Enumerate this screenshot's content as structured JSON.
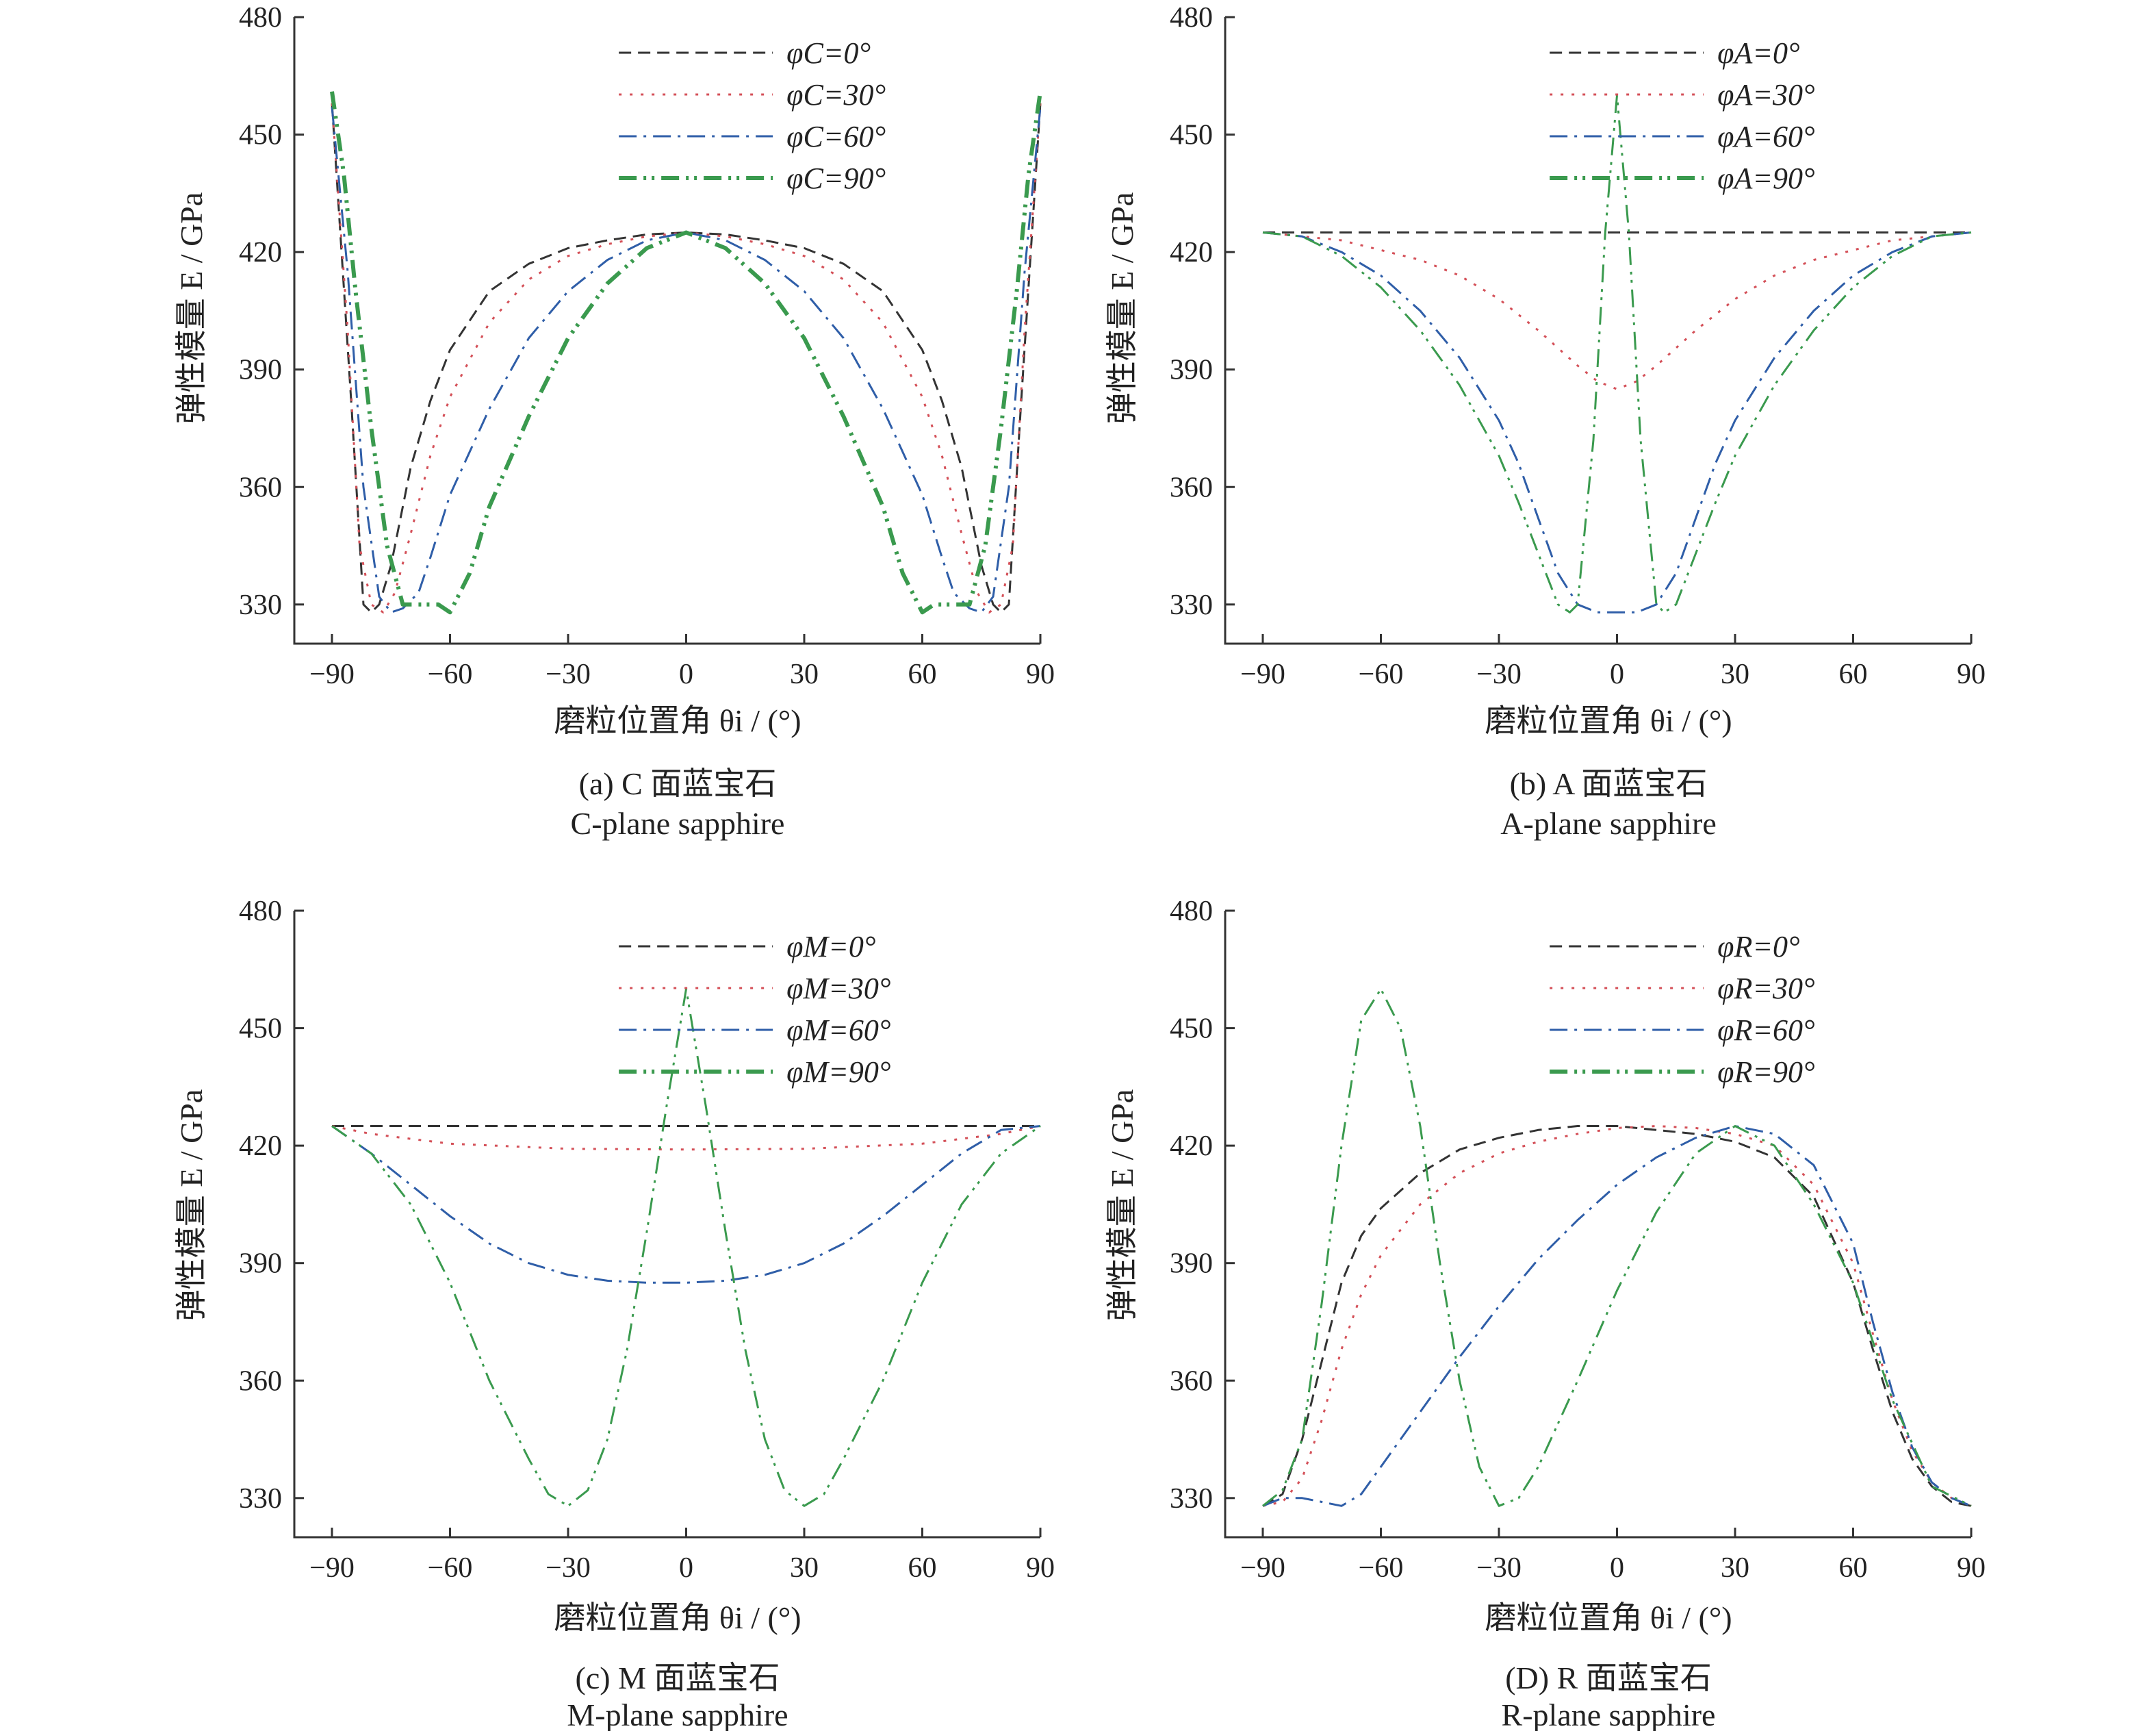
{
  "figure": {
    "panels": [
      {
        "id": "a",
        "caption_cn": "(a) C 面蓝宝石",
        "caption_en": "C-plane sapphire",
        "xlabel": "磨粒位置角 θi / (°)",
        "ylabel": "弹性模量 E / GPa"
      },
      {
        "id": "b",
        "caption_cn": "(b) A 面蓝宝石",
        "caption_en": "A-plane sapphire",
        "xlabel": "磨粒位置角 θi / (°)",
        "ylabel": "弹性模量 E / GPa"
      },
      {
        "id": "c",
        "caption_cn": "(c) M 面蓝宝石",
        "caption_en": "M-plane sapphire",
        "xlabel": "磨粒位置角 θi / (°)",
        "ylabel": "弹性模量 E / GPa"
      },
      {
        "id": "d",
        "caption_cn": "(D) R 面蓝宝石",
        "caption_en": "R-plane sapphire",
        "xlabel": "磨粒位置角 θi / (°)",
        "ylabel": "弹性模量 E / GPa"
      }
    ]
  },
  "styles": {
    "colors": [
      "#333333",
      "#d45058",
      "#2f5ea8",
      "#3a9a4e"
    ]
  },
  "chart_data": [
    {
      "type": "line",
      "xlim": [
        -90,
        90
      ],
      "ylim": [
        320,
        480
      ],
      "xticks": [
        -90,
        -60,
        -30,
        0,
        30,
        60,
        90
      ],
      "yticks": [
        330,
        360,
        390,
        420,
        450,
        480
      ],
      "legend": "top-right",
      "series": [
        {
          "name": "φC=0°",
          "x": [
            -90,
            -85,
            -82,
            -80,
            -78,
            -75,
            -70,
            -65,
            -60,
            -50,
            -40,
            -30,
            -20,
            -10,
            0,
            10,
            20,
            30,
            40,
            50,
            60,
            65,
            70,
            75,
            78,
            80,
            82,
            85,
            90
          ],
          "y": [
            458,
            380,
            330,
            328,
            330,
            340,
            365,
            382,
            395,
            410,
            417,
            421,
            423,
            424.5,
            425,
            424.5,
            423,
            421,
            417,
            410,
            395,
            382,
            365,
            340,
            330,
            328,
            330,
            380,
            458
          ]
        },
        {
          "name": "φC=30°",
          "x": [
            -90,
            -86,
            -83,
            -80,
            -77,
            -74,
            -70,
            -65,
            -60,
            -50,
            -40,
            -30,
            -20,
            -10,
            0,
            10,
            20,
            30,
            40,
            50,
            60,
            65,
            70,
            74,
            77,
            80,
            83,
            86,
            90
          ],
          "y": [
            458,
            400,
            345,
            330,
            328,
            333,
            348,
            368,
            383,
            402,
            413,
            419,
            422,
            424,
            425,
            424,
            422,
            419,
            413,
            402,
            383,
            368,
            348,
            333,
            328,
            330,
            345,
            400,
            458
          ]
        },
        {
          "name": "φC=60°",
          "x": [
            -90,
            -86,
            -82,
            -78,
            -75,
            -72,
            -68,
            -65,
            -60,
            -50,
            -40,
            -30,
            -20,
            -10,
            0,
            10,
            20,
            30,
            40,
            50,
            60,
            65,
            68,
            72,
            75,
            78,
            82,
            86,
            90
          ],
          "y": [
            457,
            415,
            360,
            332,
            328,
            329,
            333,
            342,
            358,
            380,
            398,
            410,
            418,
            423,
            425,
            423,
            418,
            410,
            398,
            380,
            358,
            342,
            333,
            329,
            328,
            332,
            360,
            415,
            457
          ]
        },
        {
          "name": "φC=90°",
          "x": [
            -90,
            -87,
            -84,
            -80,
            -76,
            -72,
            -68,
            -63,
            -60,
            -55,
            -50,
            -40,
            -30,
            -20,
            -10,
            0,
            10,
            20,
            30,
            40,
            50,
            55,
            60,
            63,
            68,
            72,
            76,
            80,
            84,
            87,
            90
          ],
          "y": [
            461,
            440,
            410,
            375,
            345,
            330,
            330,
            330,
            328,
            338,
            355,
            378,
            398,
            412,
            421,
            425,
            421,
            412,
            398,
            378,
            355,
            338,
            328,
            330,
            330,
            330,
            345,
            375,
            410,
            440,
            461
          ]
        }
      ]
    },
    {
      "type": "line",
      "xlim": [
        -90,
        90
      ],
      "ylim": [
        320,
        480
      ],
      "xticks": [
        -90,
        -60,
        -30,
        0,
        30,
        60,
        90
      ],
      "yticks": [
        330,
        360,
        390,
        420,
        450,
        480
      ],
      "legend": "top-right",
      "series": [
        {
          "name": "φA=0°",
          "x": [
            -90,
            90
          ],
          "y": [
            425,
            425
          ]
        },
        {
          "name": "φA=30°",
          "x": [
            -90,
            -70,
            -50,
            -40,
            -30,
            -20,
            -10,
            -5,
            0,
            5,
            10,
            20,
            30,
            40,
            50,
            70,
            90
          ],
          "y": [
            425,
            423,
            418,
            414,
            408,
            400,
            391,
            387,
            385,
            387,
            391,
            400,
            408,
            414,
            418,
            423,
            425
          ]
        },
        {
          "name": "φA=60°",
          "x": [
            -90,
            -80,
            -70,
            -60,
            -50,
            -40,
            -30,
            -25,
            -20,
            -15,
            -10,
            -5,
            0,
            5,
            10,
            15,
            20,
            25,
            30,
            40,
            50,
            60,
            70,
            80,
            90
          ],
          "y": [
            425,
            424,
            420,
            414,
            405,
            393,
            377,
            366,
            352,
            338,
            330,
            328,
            328,
            328,
            330,
            338,
            352,
            366,
            377,
            393,
            405,
            414,
            420,
            424,
            425
          ]
        },
        {
          "name": "φA=90°",
          "x": [
            -90,
            -80,
            -70,
            -60,
            -50,
            -40,
            -30,
            -25,
            -20,
            -15,
            -12,
            -10,
            -6,
            -3,
            0,
            3,
            6,
            10,
            12,
            15,
            20,
            25,
            30,
            40,
            50,
            60,
            70,
            80,
            90
          ],
          "y": [
            425,
            424,
            419,
            411,
            400,
            386,
            368,
            356,
            343,
            330,
            328,
            330,
            372,
            425,
            460,
            425,
            372,
            330,
            328,
            330,
            343,
            356,
            368,
            386,
            400,
            411,
            419,
            424,
            425
          ]
        }
      ]
    },
    {
      "type": "line",
      "xlim": [
        -90,
        90
      ],
      "ylim": [
        320,
        480
      ],
      "xticks": [
        -90,
        -60,
        -30,
        0,
        30,
        60,
        90
      ],
      "yticks": [
        330,
        360,
        390,
        420,
        450,
        480
      ],
      "legend": "top-right",
      "series": [
        {
          "name": "φM=0°",
          "x": [
            -90,
            90
          ],
          "y": [
            425,
            425
          ]
        },
        {
          "name": "φM=30°",
          "x": [
            -90,
            -80,
            -60,
            -30,
            0,
            30,
            60,
            80,
            90
          ],
          "y": [
            425,
            423,
            420.5,
            419.2,
            419,
            419.2,
            420.5,
            423,
            425
          ]
        },
        {
          "name": "φM=60°",
          "x": [
            -90,
            -80,
            -70,
            -60,
            -50,
            -40,
            -30,
            -20,
            -10,
            0,
            10,
            20,
            30,
            40,
            50,
            60,
            70,
            80,
            90
          ],
          "y": [
            425,
            418,
            410,
            402,
            395,
            390,
            387,
            385.5,
            385,
            385,
            385.5,
            387,
            390,
            395,
            402,
            410,
            418,
            424,
            425
          ]
        },
        {
          "name": "φM=90°",
          "x": [
            -90,
            -80,
            -70,
            -60,
            -50,
            -40,
            -35,
            -30,
            -25,
            -20,
            -15,
            -10,
            -5,
            0,
            5,
            10,
            15,
            20,
            25,
            30,
            35,
            40,
            50,
            60,
            70,
            80,
            90
          ],
          "y": [
            425,
            418,
            405,
            385,
            360,
            340,
            331,
            328,
            332,
            345,
            368,
            398,
            430,
            460,
            430,
            398,
            368,
            345,
            332,
            328,
            331,
            340,
            360,
            385,
            405,
            418,
            425
          ]
        }
      ]
    },
    {
      "type": "line",
      "xlim": [
        -90,
        90
      ],
      "ylim": [
        320,
        480
      ],
      "xticks": [
        -90,
        -60,
        -30,
        0,
        30,
        60,
        90
      ],
      "yticks": [
        330,
        360,
        390,
        420,
        450,
        480
      ],
      "legend": "top-right",
      "series": [
        {
          "name": "φR=0°",
          "x": [
            -90,
            -85,
            -80,
            -75,
            -70,
            -65,
            -60,
            -50,
            -40,
            -30,
            -20,
            -10,
            0,
            10,
            20,
            30,
            40,
            50,
            60,
            65,
            70,
            75,
            80,
            85,
            90
          ],
          "y": [
            328,
            331,
            345,
            365,
            385,
            397,
            404,
            413,
            419,
            422,
            424,
            425,
            425,
            424,
            423,
            421,
            417,
            407,
            385,
            368,
            352,
            340,
            333,
            329,
            328
          ]
        },
        {
          "name": "φR=30°",
          "x": [
            -90,
            -85,
            -80,
            -75,
            -70,
            -65,
            -60,
            -50,
            -40,
            -30,
            -20,
            -10,
            0,
            10,
            20,
            30,
            40,
            50,
            60,
            65,
            70,
            75,
            80,
            85,
            90
          ],
          "y": [
            328,
            329,
            335,
            350,
            368,
            382,
            392,
            405,
            413,
            418,
            421,
            423,
            424.5,
            425,
            424.5,
            423,
            420,
            410,
            390,
            372,
            355,
            342,
            334,
            330,
            328
          ]
        },
        {
          "name": "φR=60°",
          "x": [
            -90,
            -85,
            -80,
            -75,
            -70,
            -65,
            -60,
            -50,
            -40,
            -30,
            -20,
            -10,
            0,
            10,
            20,
            30,
            40,
            50,
            60,
            65,
            70,
            75,
            80,
            85,
            90
          ],
          "y": [
            328,
            330,
            330,
            329,
            328,
            331,
            338,
            352,
            366,
            379,
            391,
            401,
            410,
            417,
            422,
            425,
            423,
            415,
            395,
            375,
            357,
            343,
            334,
            330,
            328
          ]
        },
        {
          "name": "φR=90°",
          "x": [
            -90,
            -85,
            -80,
            -75,
            -70,
            -65,
            -60,
            -55,
            -50,
            -45,
            -40,
            -35,
            -30,
            -25,
            -20,
            -10,
            0,
            10,
            20,
            30,
            40,
            50,
            60,
            70,
            80,
            90
          ],
          "y": [
            328,
            332,
            345,
            380,
            420,
            452,
            460,
            450,
            425,
            390,
            360,
            338,
            328,
            330,
            338,
            360,
            383,
            403,
            418,
            425,
            420,
            405,
            385,
            355,
            333,
            328
          ]
        }
      ]
    }
  ]
}
